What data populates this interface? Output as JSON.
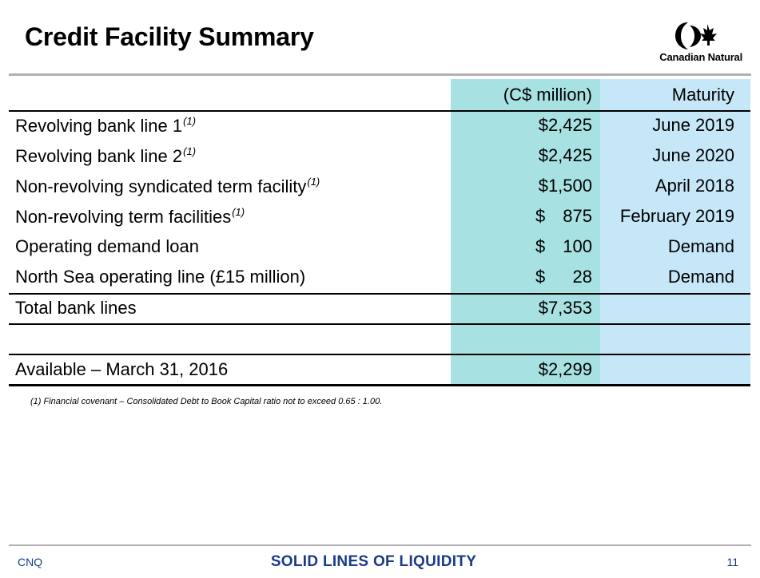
{
  "header": {
    "title": "Credit Facility Summary",
    "logo_text": "Canadian Natural"
  },
  "table": {
    "columns": {
      "amount": "(C$ million)",
      "maturity": "Maturity"
    },
    "rows": [
      {
        "desc": "Revolving bank line 1",
        "note": "(1)",
        "amount": "$2,425",
        "maturity": "June 2019"
      },
      {
        "desc": "Revolving bank line 2",
        "note": "(1)",
        "amount": "$2,425",
        "maturity": "June 2020"
      },
      {
        "desc": "Non-revolving syndicated term facility",
        "note": "(1)",
        "amount": "$1,500",
        "maturity": "April 2018"
      },
      {
        "desc": "Non-revolving term facilities",
        "note": "(1)",
        "amount_currency": "$",
        "amount_value": "875",
        "maturity": "February 2019"
      },
      {
        "desc": "Operating demand loan",
        "amount_currency": "$",
        "amount_value": "100",
        "maturity": "Demand"
      },
      {
        "desc": "North Sea operating line (£15 million)",
        "amount_currency": "$",
        "amount_value": "28",
        "maturity": "Demand"
      }
    ],
    "total": {
      "desc": "Total bank lines",
      "amount": "$7,353"
    },
    "available": {
      "desc": "Available – March 31, 2016",
      "amount": "$2,299"
    }
  },
  "footnote": "(1) Financial covenant – Consolidated Debt to Book Capital ratio not to exceed 0.65 : 1.00.",
  "footer": {
    "left": "CNQ",
    "center": "SOLID LINES OF LIQUIDITY",
    "page_number": "11"
  },
  "colors": {
    "amount_column_bg": "#a8e1e1",
    "maturity_column_bg": "#c6e7f8",
    "footer_text": "#1a3a8a"
  },
  "icons": {
    "logo": "canadian-natural-logo-icon"
  }
}
